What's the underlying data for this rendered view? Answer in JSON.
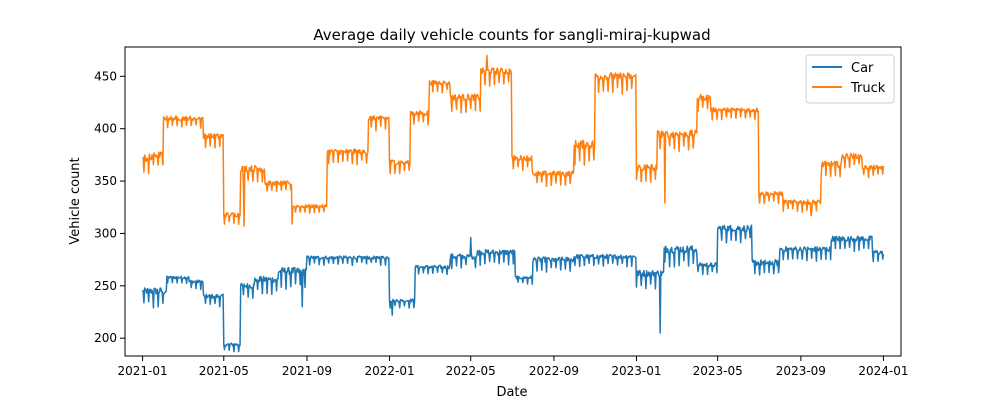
{
  "chart_data": {
    "type": "line",
    "title": "Average daily vehicle counts for sangli-miraj-kupwad",
    "xlabel": "Date",
    "ylabel": "Vehicle count",
    "x_range": [
      "2020-12-06",
      "2024-01-27"
    ],
    "ylim": [
      183,
      478
    ],
    "x_ticks": [
      "2021-01",
      "2021-05",
      "2021-09",
      "2022-01",
      "2022-05",
      "2022-09",
      "2023-01",
      "2023-05",
      "2023-09",
      "2024-01"
    ],
    "y_ticks": [
      200,
      250,
      300,
      350,
      400,
      450
    ],
    "grid": false,
    "legend_position": "top-right",
    "colors": {
      "Car": "#1f77b4",
      "Truck": "#ff7f0e"
    },
    "series": [
      {
        "name": "Car",
        "color": "#1f77b4",
        "segments": [
          [
            "2021-01-01",
            "2021-01-14",
            245,
            12
          ],
          [
            "2021-01-15",
            "2021-02-05",
            245,
            14
          ],
          [
            "2021-02-06",
            "2021-03-10",
            258,
            5
          ],
          [
            "2021-03-11",
            "2021-03-31",
            254,
            6
          ],
          [
            "2021-04-01",
            "2021-04-30",
            240,
            8
          ],
          [
            "2021-05-01",
            "2021-05-25",
            194,
            6
          ],
          [
            "2021-05-26",
            "2021-06-15",
            250,
            10
          ],
          [
            "2021-06-16",
            "2021-07-20",
            256,
            12
          ],
          [
            "2021-07-21",
            "2021-08-31",
            264,
            14
          ],
          [
            "2021-09-01",
            "2021-12-31",
            277,
            6
          ],
          [
            "2022-01-01",
            "2022-02-07",
            236,
            6
          ],
          [
            "2022-02-08",
            "2022-03-31",
            268,
            6
          ],
          [
            "2022-04-01",
            "2022-05-10",
            278,
            10
          ],
          [
            "2022-05-11",
            "2022-07-05",
            282,
            10
          ],
          [
            "2022-07-06",
            "2022-07-31",
            258,
            6
          ],
          [
            "2022-08-01",
            "2022-09-30",
            275,
            10
          ],
          [
            "2022-10-01",
            "2022-12-31",
            278,
            8
          ],
          [
            "2023-01-01",
            "2023-02-10",
            262,
            12
          ],
          [
            "2023-02-11",
            "2023-03-31",
            285,
            14
          ],
          [
            "2023-04-01",
            "2023-04-30",
            270,
            8
          ],
          [
            "2023-05-01",
            "2023-06-20",
            305,
            12
          ],
          [
            "2023-06-21",
            "2023-07-31",
            272,
            12
          ],
          [
            "2023-08-01",
            "2023-10-15",
            285,
            10
          ],
          [
            "2023-10-16",
            "2023-12-15",
            295,
            10
          ],
          [
            "2023-12-16",
            "2024-01-01",
            282,
            8
          ]
        ],
        "spikes": [
          [
            "2023-02-05",
            205
          ],
          [
            "2022-01-05",
            222
          ],
          [
            "2021-08-25",
            230
          ],
          [
            "2022-05-01",
            296
          ]
        ]
      },
      {
        "name": "Truck",
        "color": "#ff7f0e",
        "segments": [
          [
            "2021-01-01",
            "2021-01-14",
            372,
            16
          ],
          [
            "2021-01-15",
            "2021-01-31",
            375,
            12
          ],
          [
            "2021-02-01",
            "2021-03-31",
            410,
            8
          ],
          [
            "2021-04-01",
            "2021-04-30",
            393,
            10
          ],
          [
            "2021-05-01",
            "2021-05-25",
            318,
            8
          ],
          [
            "2021-05-26",
            "2021-06-30",
            362,
            12
          ],
          [
            "2021-07-01",
            "2021-08-10",
            348,
            8
          ],
          [
            "2021-08-11",
            "2021-09-30",
            326,
            6
          ],
          [
            "2021-10-01",
            "2021-11-30",
            378,
            10
          ],
          [
            "2021-12-01",
            "2021-12-31",
            410,
            10
          ],
          [
            "2022-01-01",
            "2022-01-31",
            368,
            10
          ],
          [
            "2022-02-01",
            "2022-02-28",
            415,
            10
          ],
          [
            "2022-03-01",
            "2022-03-31",
            444,
            8
          ],
          [
            "2022-04-01",
            "2022-05-15",
            430,
            12
          ],
          [
            "2022-05-16",
            "2022-06-30",
            455,
            12
          ],
          [
            "2022-07-01",
            "2022-07-31",
            372,
            10
          ],
          [
            "2022-08-01",
            "2022-09-30",
            357,
            10
          ],
          [
            "2022-10-01",
            "2022-10-31",
            385,
            16
          ],
          [
            "2022-11-01",
            "2022-12-31",
            450,
            14
          ],
          [
            "2023-01-01",
            "2023-01-31",
            363,
            14
          ],
          [
            "2023-02-01",
            "2023-03-31",
            395,
            14
          ],
          [
            "2023-04-01",
            "2023-04-20",
            430,
            12
          ],
          [
            "2023-04-21",
            "2023-06-30",
            418,
            8
          ],
          [
            "2023-07-01",
            "2023-08-05",
            338,
            8
          ],
          [
            "2023-08-06",
            "2023-09-30",
            330,
            8
          ],
          [
            "2023-10-01",
            "2023-10-31",
            366,
            12
          ],
          [
            "2023-11-01",
            "2023-11-30",
            374,
            10
          ],
          [
            "2023-12-01",
            "2024-01-01",
            363,
            8
          ]
        ],
        "spikes": [
          [
            "2023-02-12",
            329
          ],
          [
            "2021-05-31",
            307
          ],
          [
            "2021-08-10",
            309
          ],
          [
            "2023-09-16",
            317
          ],
          [
            "2022-05-25",
            470
          ]
        ]
      }
    ]
  }
}
